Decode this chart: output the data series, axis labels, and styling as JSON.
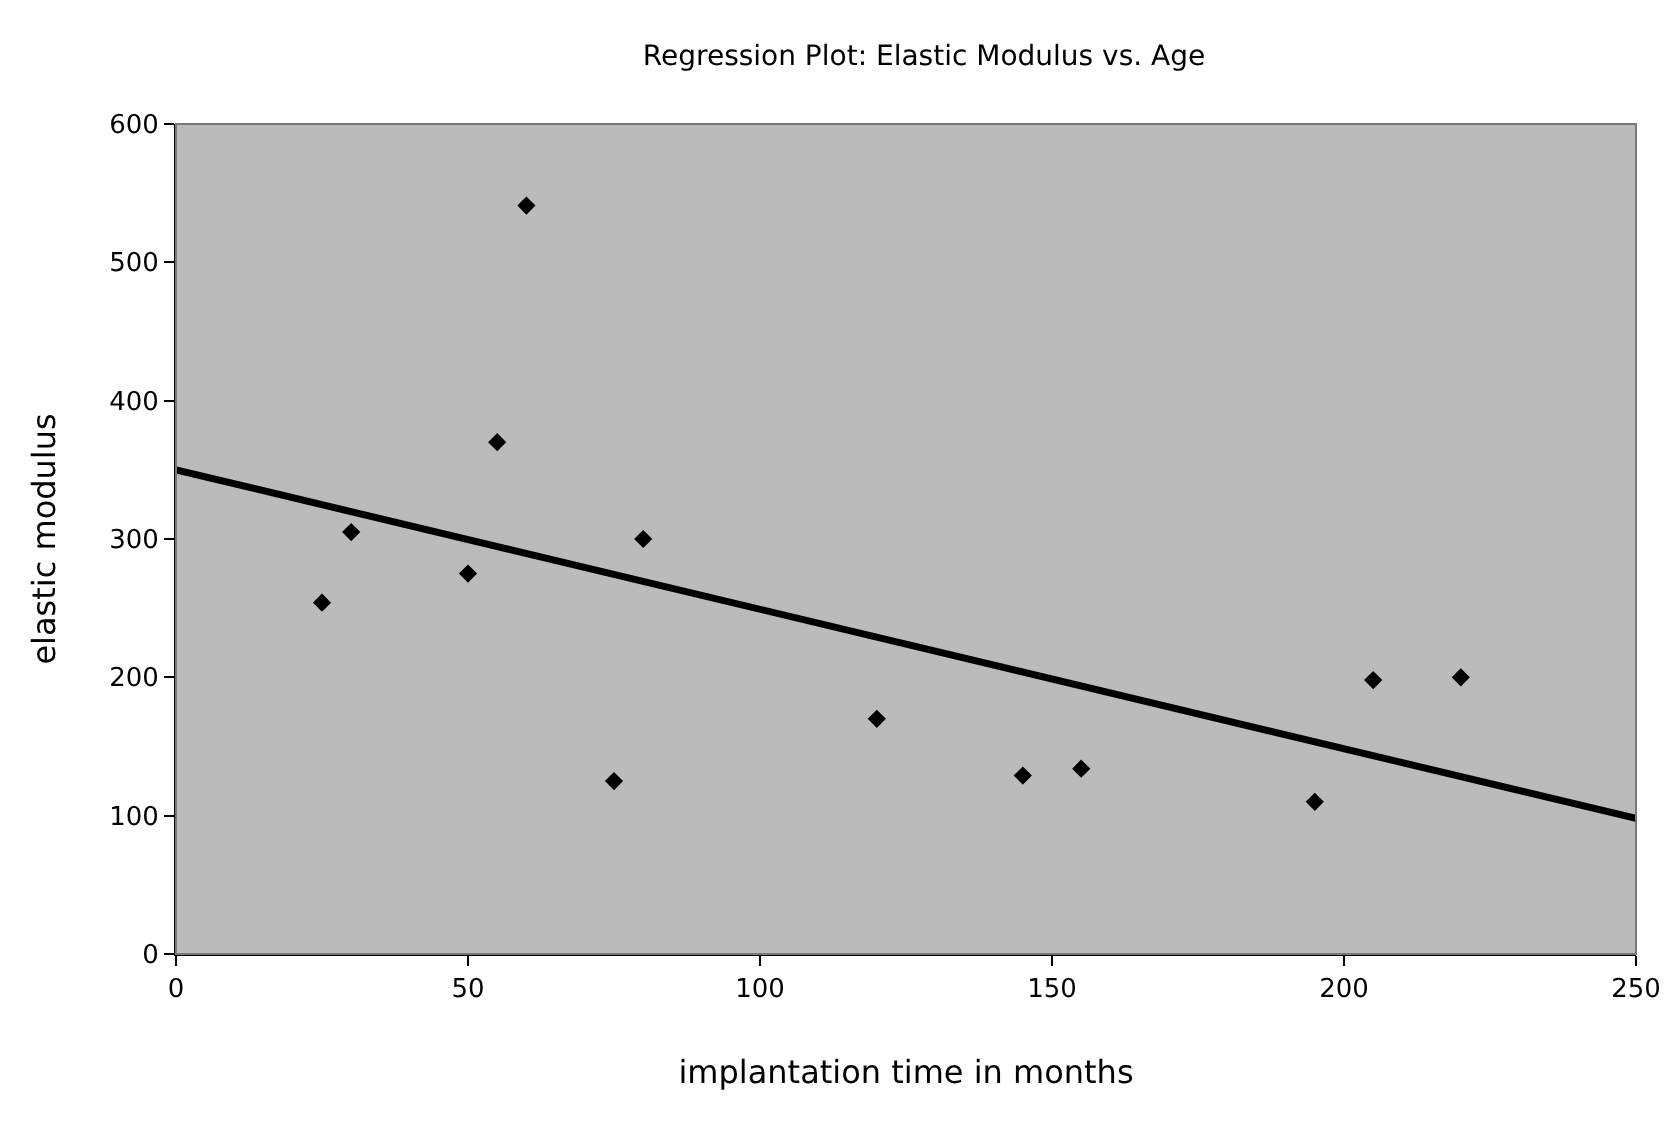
{
  "chart_data": {
    "type": "scatter",
    "title": "Regression Plot: Elastic Modulus vs. Age",
    "xlabel": "implantation time in months",
    "ylabel": "elastic modulus",
    "series": [
      {
        "type": "scatter",
        "color": "#000000",
        "marker": "diamond",
        "x": [
          25,
          30,
          50,
          55,
          60,
          75,
          80,
          120,
          145,
          155,
          195,
          205,
          220
        ],
        "values": [
          254,
          305,
          275,
          370,
          541,
          125,
          300,
          170,
          129,
          134,
          110,
          198,
          200
        ]
      },
      {
        "type": "line",
        "color": "#000000",
        "x": [
          0,
          250
        ],
        "values": [
          350,
          98
        ]
      }
    ],
    "xlim": [
      0,
      250
    ],
    "xticks": [
      0,
      50,
      100,
      150,
      200,
      250
    ],
    "ylim": [
      0,
      600
    ],
    "yticks": [
      0,
      100,
      200,
      300,
      400,
      500,
      600
    ],
    "grid": false,
    "legend": false
  }
}
